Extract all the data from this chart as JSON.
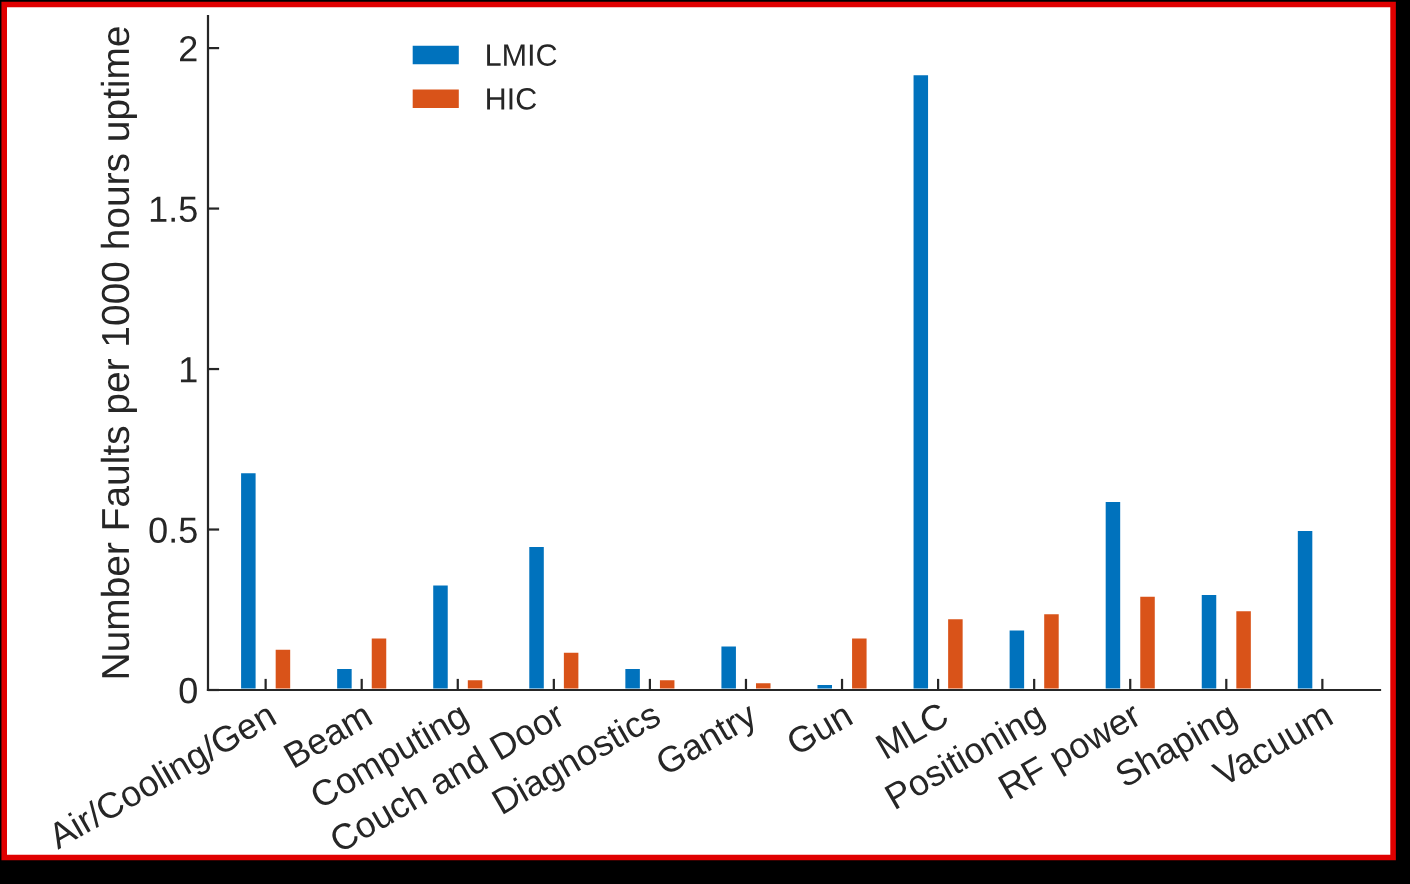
{
  "chart_data": {
    "type": "bar",
    "ylabel": "Number Faults per 1000 hours uptime",
    "categories": [
      "Air/Cooling/Gen",
      "Beam",
      "Computing",
      "Couch and Door",
      "Diagnostics",
      "Gantry",
      "Gun",
      "MLC",
      "Positioning",
      "RF power",
      "Shaping",
      "Vacuum"
    ],
    "series": [
      {
        "name": "LMIC",
        "color": "#0072bd",
        "values": [
          0.68,
          0.07,
          0.33,
          0.45,
          0.07,
          0.14,
          0.02,
          1.92,
          0.19,
          0.59,
          0.3,
          0.5
        ]
      },
      {
        "name": "HIC",
        "color": "#d95319",
        "values": [
          0.13,
          0.165,
          0.035,
          0.12,
          0.035,
          0.025,
          0.165,
          0.225,
          0.24,
          0.295,
          0.25,
          null
        ]
      }
    ],
    "ylim": [
      0,
      2.1
    ],
    "yticks": [
      0,
      0.5,
      1,
      1.5,
      2
    ],
    "legend": "top left",
    "grid": false
  }
}
